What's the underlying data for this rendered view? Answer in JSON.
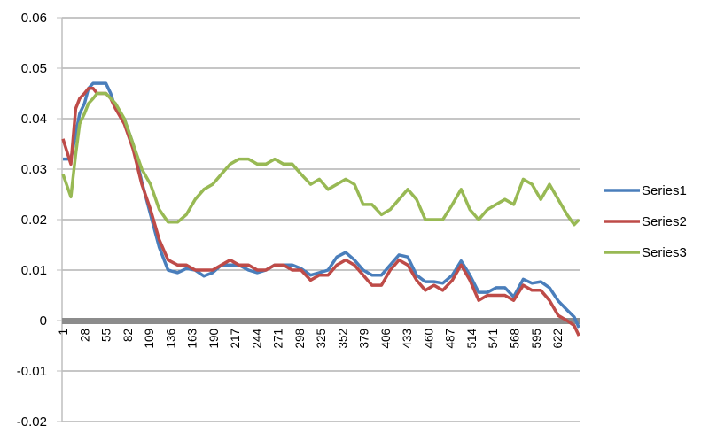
{
  "chart_data": {
    "type": "line",
    "title": "",
    "xlabel": "",
    "ylabel": "",
    "ylim": [
      -0.02,
      0.06
    ],
    "y_ticks": [
      "0.06",
      "0.05",
      "0.04",
      "0.03",
      "0.02",
      "0.01",
      "0",
      "-0.01",
      "-0.02"
    ],
    "y_tick_values": [
      0.06,
      0.05,
      0.04,
      0.03,
      0.02,
      0.01,
      0,
      -0.01,
      -0.02
    ],
    "x_range": [
      1,
      649
    ],
    "x_ticks": [
      "1",
      "28",
      "55",
      "82",
      "109",
      "136",
      "163",
      "190",
      "217",
      "244",
      "271",
      "298",
      "325",
      "352",
      "379",
      "406",
      "433",
      "460",
      "487",
      "514",
      "541",
      "568",
      "595",
      "622"
    ],
    "grid": true,
    "legend_position": "right",
    "x": [
      1,
      11,
      17,
      22,
      28,
      33,
      39,
      44,
      50,
      55,
      61,
      67,
      78,
      89,
      100,
      111,
      122,
      133,
      145,
      156,
      167,
      178,
      189,
      200,
      211,
      222,
      234,
      245,
      256,
      267,
      278,
      289,
      300,
      312,
      323,
      334,
      345,
      356,
      367,
      378,
      389,
      401,
      412,
      423,
      434,
      445,
      456,
      467,
      478,
      490,
      501,
      512,
      523,
      534,
      545,
      556,
      567,
      579,
      590,
      601,
      612,
      623,
      634,
      643,
      649
    ],
    "series": [
      {
        "name": "Series1",
        "color": "#4A7EBB",
        "values": [
          0.032,
          0.032,
          0.037,
          0.041,
          0.043,
          0.046,
          0.047,
          0.047,
          0.047,
          0.047,
          0.045,
          0.042,
          0.04,
          0.035,
          0.0275,
          0.021,
          0.0145,
          0.01,
          0.0095,
          0.0103,
          0.01,
          0.0088,
          0.0095,
          0.011,
          0.011,
          0.011,
          0.01,
          0.0095,
          0.01,
          0.011,
          0.011,
          0.011,
          0.0103,
          0.009,
          0.0095,
          0.01,
          0.0126,
          0.0135,
          0.012,
          0.01,
          0.009,
          0.009,
          0.011,
          0.013,
          0.0126,
          0.009,
          0.0077,
          0.0077,
          0.0074,
          0.009,
          0.0118,
          0.009,
          0.0056,
          0.0056,
          0.0065,
          0.0065,
          0.0047,
          0.0082,
          0.0074,
          0.0077,
          0.0065,
          0.0039,
          0.0021,
          0.0007,
          -0.0014
        ]
      },
      {
        "name": "Series2",
        "color": "#BE4B48",
        "values": [
          0.036,
          0.031,
          0.042,
          0.044,
          0.045,
          0.046,
          0.046,
          0.045,
          0.045,
          0.045,
          0.044,
          0.042,
          0.039,
          0.034,
          0.027,
          0.022,
          0.016,
          0.012,
          0.011,
          0.011,
          0.01,
          0.01,
          0.01,
          0.011,
          0.012,
          0.011,
          0.011,
          0.01,
          0.01,
          0.011,
          0.011,
          0.01,
          0.01,
          0.008,
          0.009,
          0.009,
          0.011,
          0.012,
          0.011,
          0.009,
          0.007,
          0.007,
          0.01,
          0.012,
          0.011,
          0.008,
          0.006,
          0.007,
          0.006,
          0.008,
          0.011,
          0.008,
          0.004,
          0.005,
          0.005,
          0.005,
          0.004,
          0.007,
          0.006,
          0.006,
          0.004,
          0.001,
          0.0,
          -0.001,
          -0.003
        ]
      },
      {
        "name": "Series3",
        "color": "#98B954",
        "values": [
          0.029,
          0.0245,
          0.033,
          0.039,
          0.041,
          0.043,
          0.044,
          0.045,
          0.045,
          0.045,
          0.044,
          0.043,
          0.04,
          0.035,
          0.03,
          0.027,
          0.022,
          0.0195,
          0.0195,
          0.021,
          0.024,
          0.026,
          0.027,
          0.029,
          0.031,
          0.032,
          0.032,
          0.031,
          0.031,
          0.032,
          0.031,
          0.031,
          0.029,
          0.027,
          0.028,
          0.026,
          0.027,
          0.028,
          0.027,
          0.023,
          0.023,
          0.021,
          0.022,
          0.024,
          0.026,
          0.024,
          0.02,
          0.02,
          0.02,
          0.023,
          0.026,
          0.022,
          0.02,
          0.022,
          0.023,
          0.024,
          0.023,
          0.028,
          0.027,
          0.024,
          0.027,
          0.024,
          0.021,
          0.019,
          0.02
        ]
      }
    ]
  }
}
